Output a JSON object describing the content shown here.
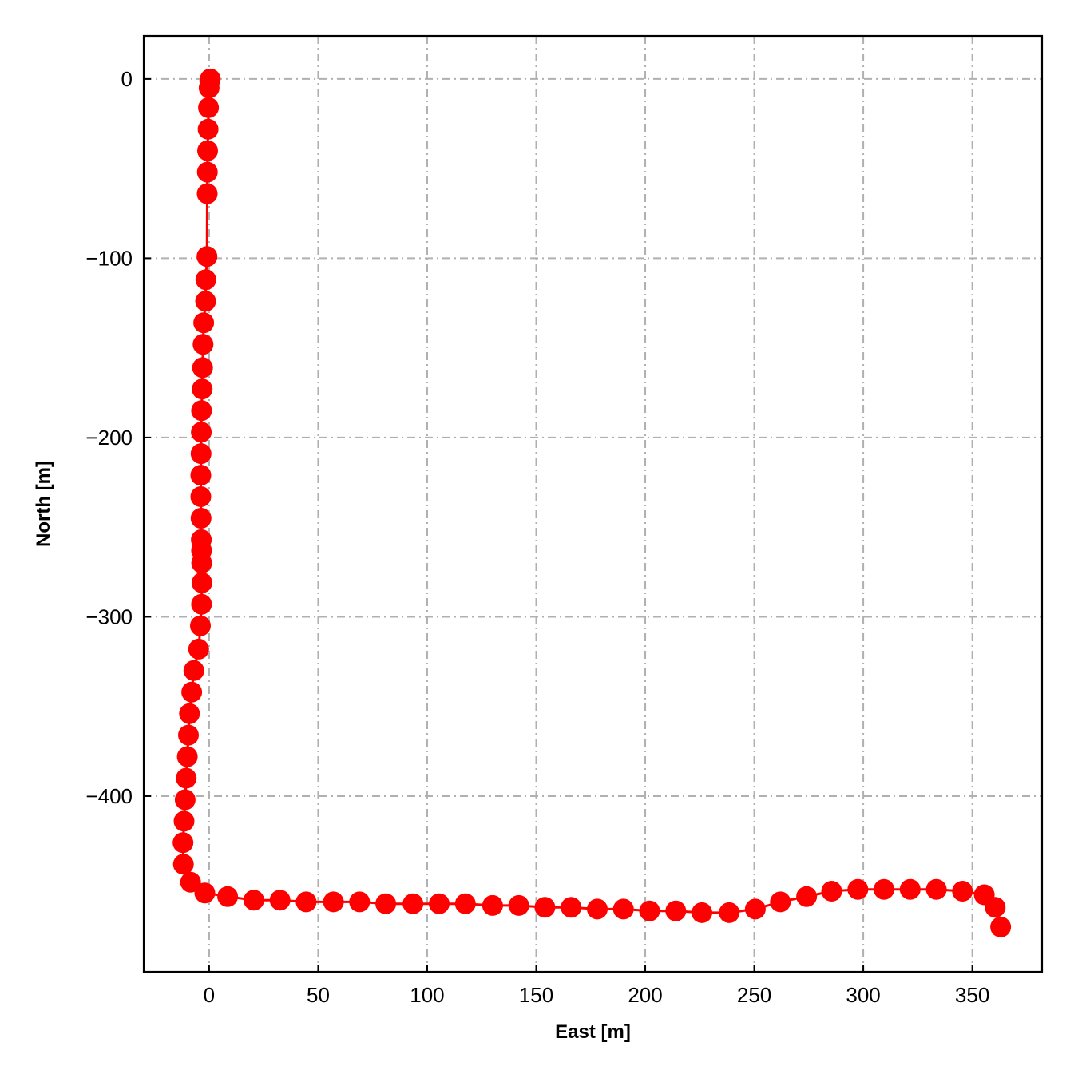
{
  "chart_data": {
    "type": "line",
    "xlabel": "East [m]",
    "ylabel": "North [m]",
    "xlim": [
      -30,
      382
    ],
    "ylim": [
      -498,
      24
    ],
    "x_ticks": [
      0,
      50,
      100,
      150,
      200,
      250,
      300,
      350
    ],
    "y_ticks": [
      0,
      -100,
      -200,
      -300,
      -400
    ],
    "grid": true,
    "grid_style": "dash-dot",
    "colors": {
      "series": "#ff0000",
      "grid": "#b0b0b0",
      "axes": "#000000"
    },
    "series": [
      {
        "marker": "circle",
        "x": [
          0.5,
          0.3,
          0.0,
          -0.3,
          -0.5,
          -0.7,
          -0.8,
          -0.9,
          -1.0,
          -1.5,
          -1.6,
          -2.5,
          -2.8,
          -3.0,
          -3.2,
          -3.5,
          -3.6,
          -3.7,
          -3.8,
          -3.8,
          -3.7,
          -3.6,
          -3.5,
          -3.4,
          -3.3,
          -3.5,
          -4.0,
          -4.8,
          -7.0,
          -8.0,
          -9.0,
          -9.5,
          -10.0,
          -10.5,
          -11.0,
          -11.5,
          -12.0,
          -11.8,
          -8.5,
          -2.0,
          8.5,
          20.5,
          32.5,
          44.5,
          57.0,
          69.0,
          81.0,
          93.5,
          105.5,
          117.5,
          130.0,
          142.0,
          154.0,
          166.0,
          178.0,
          190.0,
          202.0,
          214.0,
          226.0,
          238.5,
          250.5,
          262.0,
          274.0,
          285.5,
          297.5,
          309.5,
          321.5,
          333.5,
          345.5,
          355.5,
          360.5,
          363.0
        ],
        "y": [
          0,
          -1,
          -5,
          -16,
          -28,
          -40,
          -52,
          -64,
          -99,
          -112,
          -124,
          -136,
          -148,
          -161,
          -173,
          -185,
          -197,
          -209,
          -221,
          -233,
          -245,
          -257,
          -263,
          -270,
          -281,
          -293,
          -305,
          -318,
          -330,
          -342,
          -354,
          -366,
          -378,
          -390,
          -402,
          -414,
          -426,
          -438,
          -448,
          -454,
          -456,
          -458,
          -458,
          -459,
          -459,
          -459,
          -460,
          -460,
          -460,
          -460,
          -461,
          -461,
          -462,
          -462,
          -463,
          -463,
          -464,
          -464,
          -465,
          -465,
          -463,
          -459,
          -456,
          -453,
          -452,
          -452,
          -452,
          -452,
          -453,
          -455,
          -462,
          -473
        ]
      }
    ]
  }
}
